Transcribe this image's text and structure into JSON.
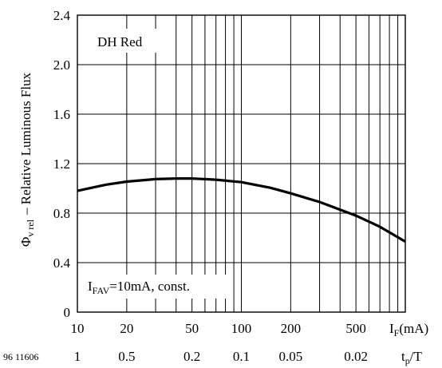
{
  "chart_data": {
    "type": "line",
    "x_scale": "log",
    "xlim": [
      10,
      1000
    ],
    "ylim": [
      0,
      2.4
    ],
    "grid": true,
    "ylabel_symbol": "Φ",
    "ylabel_sub": "v rel",
    "ylabel_text": "– Relative Luminous Flux",
    "xlabel_main": "I",
    "xlabel_sub": "F",
    "xlabel_unit": "(mA)",
    "x2label_main": "t",
    "x2label_sub": "p",
    "x2label_suffix": "/T",
    "figure_code": "96 11606",
    "legend_text": "DH Red",
    "annotation_main": "I",
    "annotation_sub": "FAV",
    "annotation_rest": "=10mA, const.",
    "y_ticks": [
      "0",
      "0.4",
      "0.8",
      "1.2",
      "1.6",
      "2.0",
      "2.4"
    ],
    "x_ticks": [
      {
        "value": 10,
        "label": "10"
      },
      {
        "value": 20,
        "label": "20"
      },
      {
        "value": 50,
        "label": "50"
      },
      {
        "value": 100,
        "label": "100"
      },
      {
        "value": 200,
        "label": "200"
      },
      {
        "value": 500,
        "label": "500"
      }
    ],
    "x2_ticks": [
      {
        "value": 10,
        "label": "1"
      },
      {
        "value": 20,
        "label": "0.5"
      },
      {
        "value": 50,
        "label": "0.2"
      },
      {
        "value": 100,
        "label": "0.1"
      },
      {
        "value": 200,
        "label": "0.05"
      },
      {
        "value": 500,
        "label": "0.02"
      }
    ],
    "series": [
      {
        "x": [
          10,
          15,
          20,
          30,
          40,
          50,
          70,
          100,
          150,
          200,
          300,
          500,
          700,
          1000
        ],
        "y": [
          0.98,
          1.03,
          1.055,
          1.075,
          1.08,
          1.08,
          1.07,
          1.05,
          1.005,
          0.96,
          0.89,
          0.78,
          0.69,
          0.57
        ]
      }
    ]
  }
}
